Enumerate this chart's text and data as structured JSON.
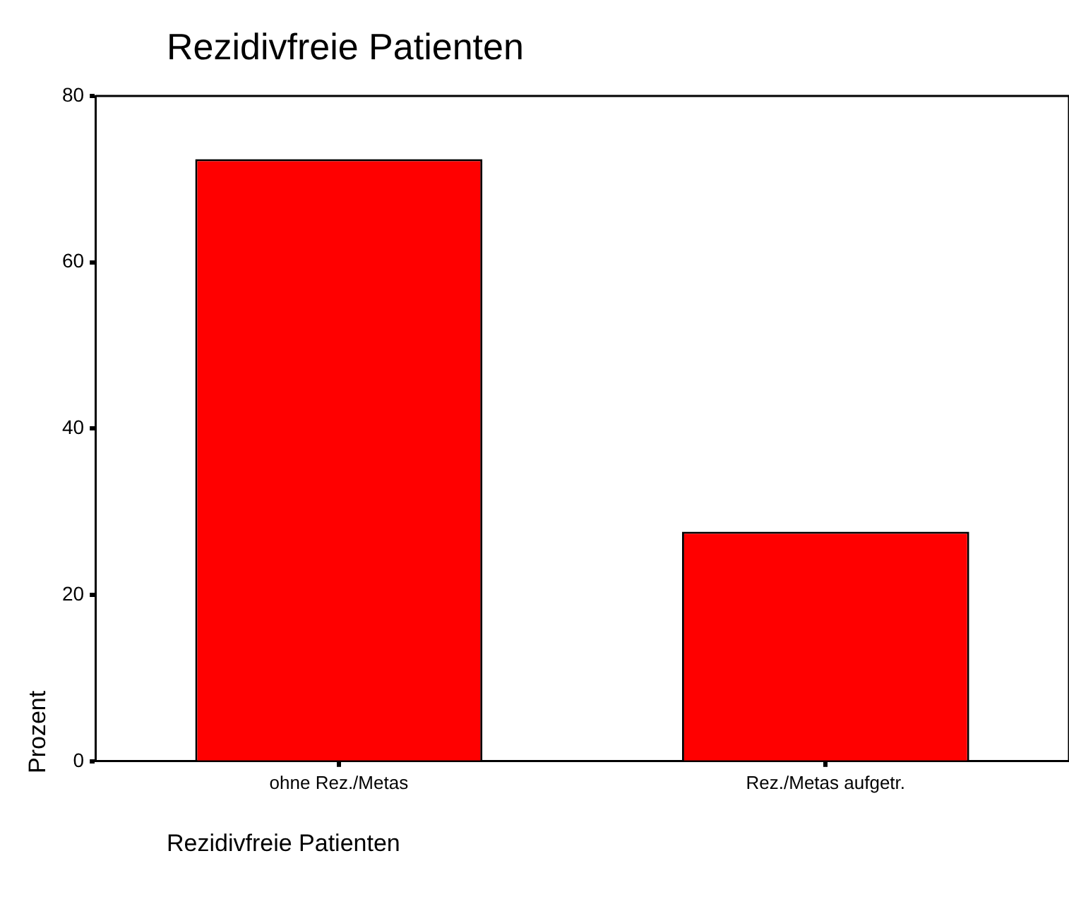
{
  "chart_data": {
    "type": "bar",
    "title": "Rezidivfreie Patienten",
    "xlabel": "Rezidivfreie Patienten",
    "ylabel": "Prozent",
    "categories": [
      "ohne Rez./Metas",
      "Rez./Metas aufgetr."
    ],
    "values": [
      72.4,
      27.6
    ],
    "color": "#ff0000",
    "ylim": [
      0,
      80
    ],
    "yticks": [
      0,
      20,
      40,
      60,
      80
    ],
    "grid": false,
    "legend": false
  }
}
